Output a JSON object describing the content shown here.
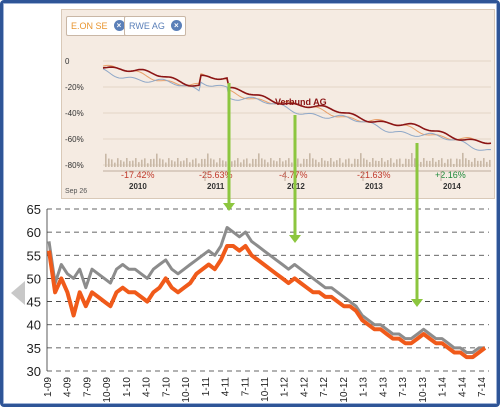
{
  "top_chart": {
    "tabs": [
      {
        "label": "E.ON SE",
        "color": "#e8952f"
      },
      {
        "label": "RWE AG",
        "color": "#5a7fb8"
      }
    ],
    "y_labels": [
      "0",
      "-20%",
      "-40%",
      "-60%",
      "-80%"
    ],
    "x_labels": [
      "2010",
      "2011",
      "2012",
      "2013",
      "2014"
    ],
    "left_caption": "Sep 26",
    "annual_returns": [
      "-17.42%",
      "-25.63%",
      "-4.77%",
      "-21.63%",
      "+2.16%"
    ],
    "annual_colors": [
      "#c0392b",
      "#c0392b",
      "#c0392b",
      "#c0392b",
      "#1e8a3a"
    ],
    "series_label": "Verbund AG",
    "close_icon": "x-circle-icon"
  },
  "chart_data": {
    "type": "line",
    "ylim": [
      30,
      65
    ],
    "yticks": [
      30,
      35,
      40,
      45,
      50,
      55,
      60,
      65
    ],
    "x_labels": [
      "1-09",
      "4-09",
      "7-09",
      "10-09",
      "1-10",
      "4-10",
      "7-10",
      "10-10",
      "1-11",
      "4-11",
      "7-11",
      "10-11",
      "1-12",
      "4-12",
      "7-12",
      "10-12",
      "1-13",
      "4-13",
      "7-13",
      "10-13",
      "1-14",
      "4-14",
      "7-14"
    ],
    "series": [
      {
        "color": "#8c8c8c",
        "values": [
          58,
          49,
          53,
          51,
          50,
          52,
          48,
          52,
          51,
          50,
          49,
          52,
          53,
          52,
          52,
          51,
          50,
          52,
          53,
          54,
          52,
          51,
          52,
          53,
          54,
          55,
          56,
          55,
          57,
          61,
          60,
          59,
          60,
          58,
          57,
          56,
          55,
          54,
          53,
          52,
          53,
          52,
          51,
          50,
          49,
          48,
          48,
          47,
          46,
          45,
          44,
          42,
          41,
          40,
          40,
          39,
          38,
          38,
          37,
          37,
          38,
          39,
          38,
          37,
          37,
          36,
          35,
          35,
          34,
          34,
          35,
          35
        ]
      },
      {
        "color": "#f05a1a",
        "values": [
          56,
          47,
          50,
          47,
          42,
          47,
          44,
          47,
          46,
          45,
          44,
          47,
          48,
          47,
          47,
          46,
          45,
          47,
          48,
          50,
          48,
          47,
          48,
          49,
          51,
          52,
          53,
          52,
          54,
          57,
          57,
          56,
          57,
          55,
          54,
          53,
          52,
          51,
          50,
          49,
          50,
          49,
          48,
          47,
          47,
          46,
          46,
          45,
          44,
          44,
          43,
          41,
          40,
          39,
          39,
          38,
          37,
          37,
          36,
          36,
          37,
          38,
          37,
          36,
          36,
          35,
          34,
          34,
          33,
          33,
          34,
          35
        ]
      }
    ],
    "gridlines": "dashed-horizontal"
  },
  "icons": [
    "down-arrow-icon",
    "left-arrow-icon"
  ]
}
